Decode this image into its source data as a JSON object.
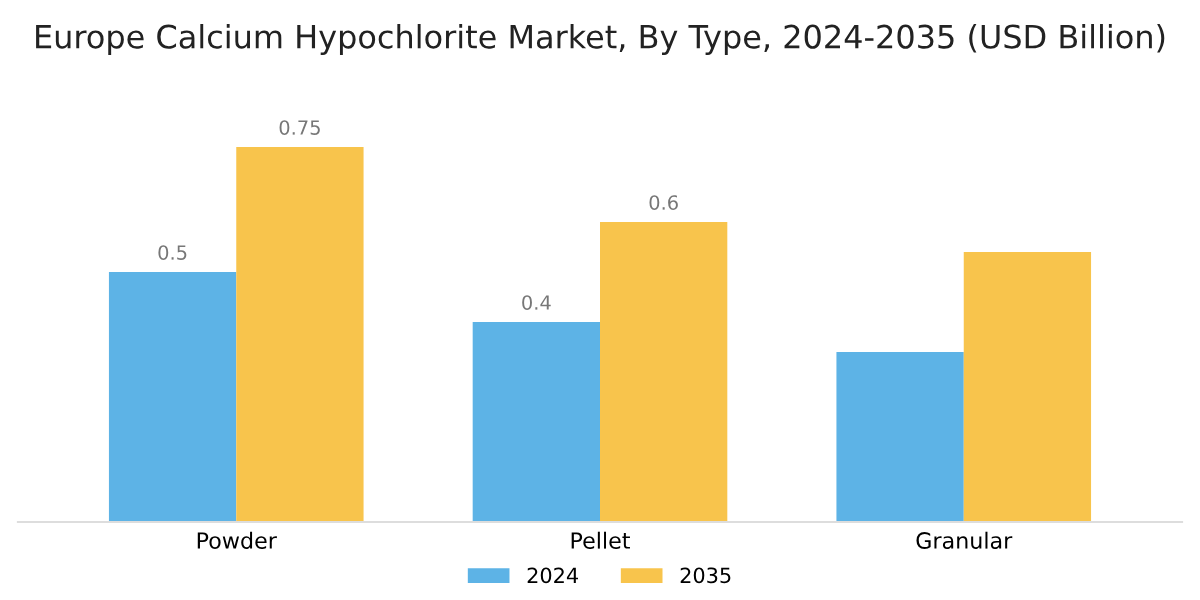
{
  "chart_data": {
    "type": "bar",
    "title": "Europe Calcium Hypochlorite Market, By Type, 2024-2035 (USD Billion)",
    "categories": [
      "Powder",
      "Pellet",
      "Granular"
    ],
    "series": [
      {
        "name": "2024",
        "color": "#5db3e6",
        "values": [
          0.5,
          0.4,
          0.34
        ],
        "value_labels": [
          "0.5",
          "0.4",
          null
        ]
      },
      {
        "name": "2035",
        "color": "#f8c44c",
        "values": [
          0.75,
          0.6,
          0.54
        ],
        "value_labels": [
          "0.75",
          "0.6",
          null
        ]
      }
    ],
    "legend": "bottom",
    "grid": false
  }
}
